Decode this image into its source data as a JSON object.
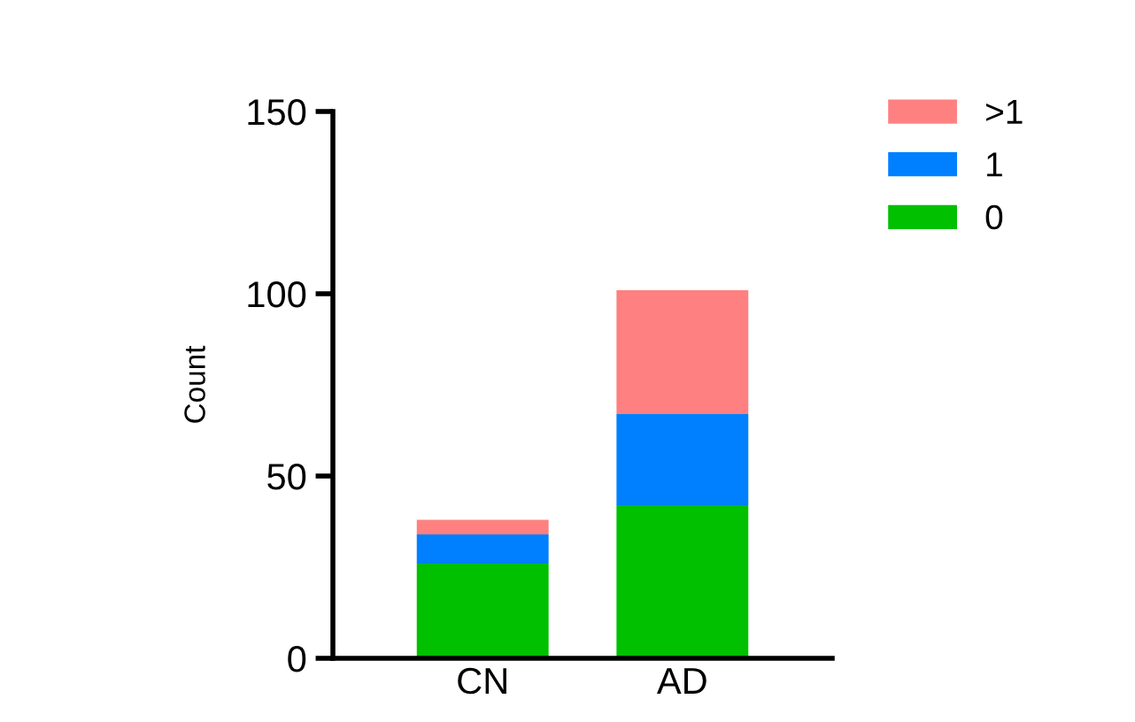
{
  "chart_data": {
    "type": "bar",
    "stacked": true,
    "categories": [
      "CN",
      "AD"
    ],
    "ylabel": "Count",
    "ylim": [
      0,
      150
    ],
    "yticks": [
      0,
      50,
      100,
      150
    ],
    "legend": "top right",
    "grid": false,
    "series": [
      {
        "name": "0",
        "color": "#00c000",
        "values": [
          26,
          42
        ]
      },
      {
        "name": "1",
        "color": "#0080ff",
        "values": [
          8,
          25
        ]
      },
      {
        "name": ">1",
        "color": "#ff8080",
        "values": [
          4,
          34
        ]
      }
    ]
  }
}
